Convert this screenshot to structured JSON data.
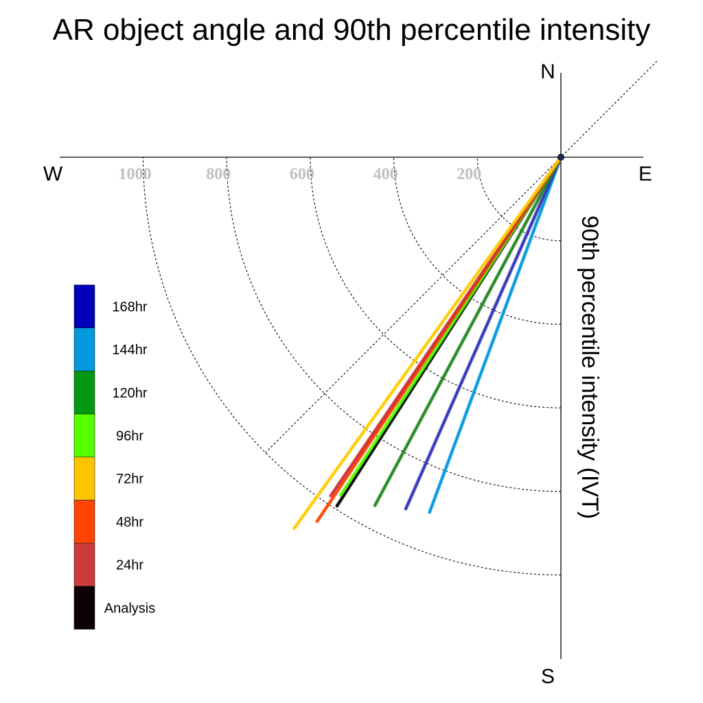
{
  "chart_data": {
    "type": "polar-vector",
    "title": "AR object angle and 90th percentile intensity",
    "axis_label": "90th percentile intensity (IVT)",
    "compass": {
      "n": "N",
      "e": "E",
      "s": "S",
      "w": "W"
    },
    "radial_ticks": [
      200,
      400,
      600,
      800,
      1000
    ],
    "radial_max": 1200,
    "grid": "dotted arcs every 200 plus 45-degree diagonal",
    "series": [
      {
        "name": "144hr",
        "color": "#0099dd",
        "angle_deg": 200.3,
        "intensity": 906
      },
      {
        "name": "168hr",
        "color": "#3333bb",
        "angle_deg": 203.8,
        "intensity": 920
      },
      {
        "name": "120hr",
        "color": "#228822",
        "angle_deg": 208.1,
        "intensity": 945
      },
      {
        "name": "Analysis",
        "color": "#000000",
        "angle_deg": 212.7,
        "intensity": 992
      },
      {
        "name": "96hr",
        "color": "#55ff00",
        "angle_deg": 213.1,
        "intensity": 966
      },
      {
        "name": "48hr",
        "color": "#ff4400",
        "angle_deg": 213.8,
        "intensity": 1049
      },
      {
        "name": "24hr",
        "color": "#cc3333",
        "angle_deg": 214.2,
        "intensity": 980
      },
      {
        "name": "72hr",
        "color": "#ffcc00",
        "angle_deg": 215.7,
        "intensity": 1094
      }
    ],
    "legend": [
      {
        "label": "168hr",
        "color": "#0000bb"
      },
      {
        "label": "144hr",
        "color": "#0099dd"
      },
      {
        "label": "120hr",
        "color": "#009911"
      },
      {
        "label": "96hr",
        "color": "#55ff00"
      },
      {
        "label": "72hr",
        "color": "#ffc400"
      },
      {
        "label": "48hr",
        "color": "#ff4400"
      },
      {
        "label": "24hr",
        "color": "#cc3c3c"
      },
      {
        "label": "Analysis",
        "color": "#0c0006"
      }
    ]
  }
}
